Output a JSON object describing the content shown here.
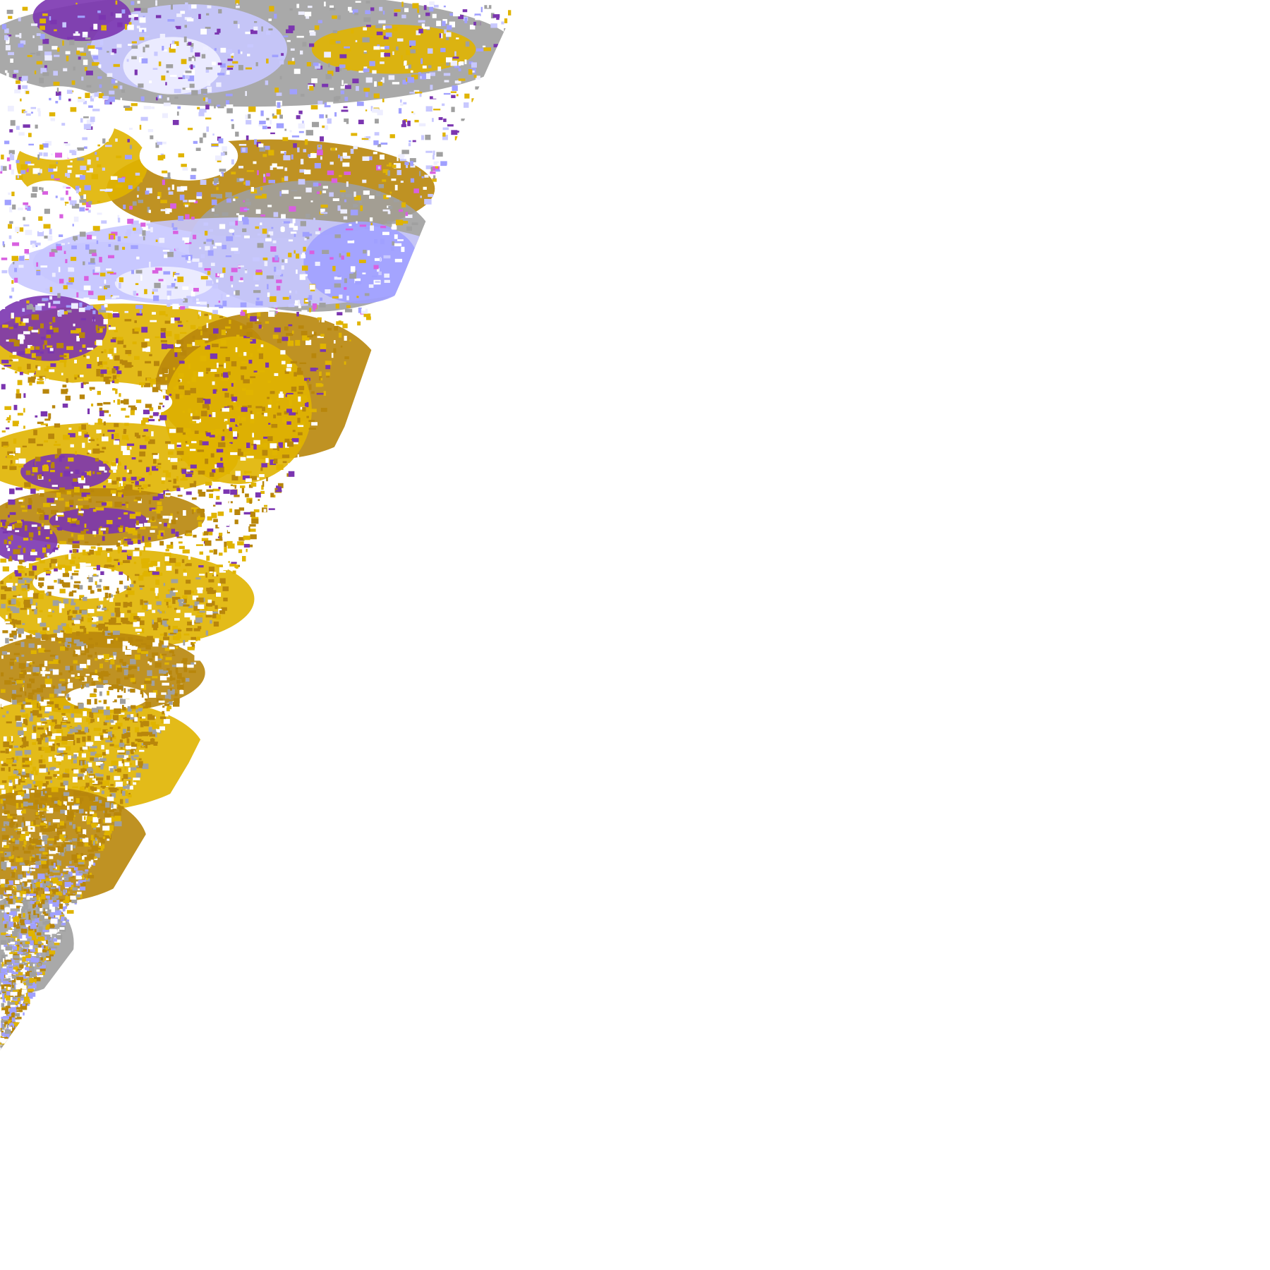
{
  "map": {
    "type": "satellite cloud-type classification tile (earth limb)",
    "background": "#ffffff",
    "palette": {
      "gold_light": "#e0b400",
      "gold_dark": "#b8860b",
      "purple": "#7b35b0",
      "magenta": "#d860e0",
      "lavender_pale": "#eeeeff",
      "lavender": "#c8c8ff",
      "periwinkle": "#a0a0ff",
      "grey": "#a0a0a0"
    }
  }
}
